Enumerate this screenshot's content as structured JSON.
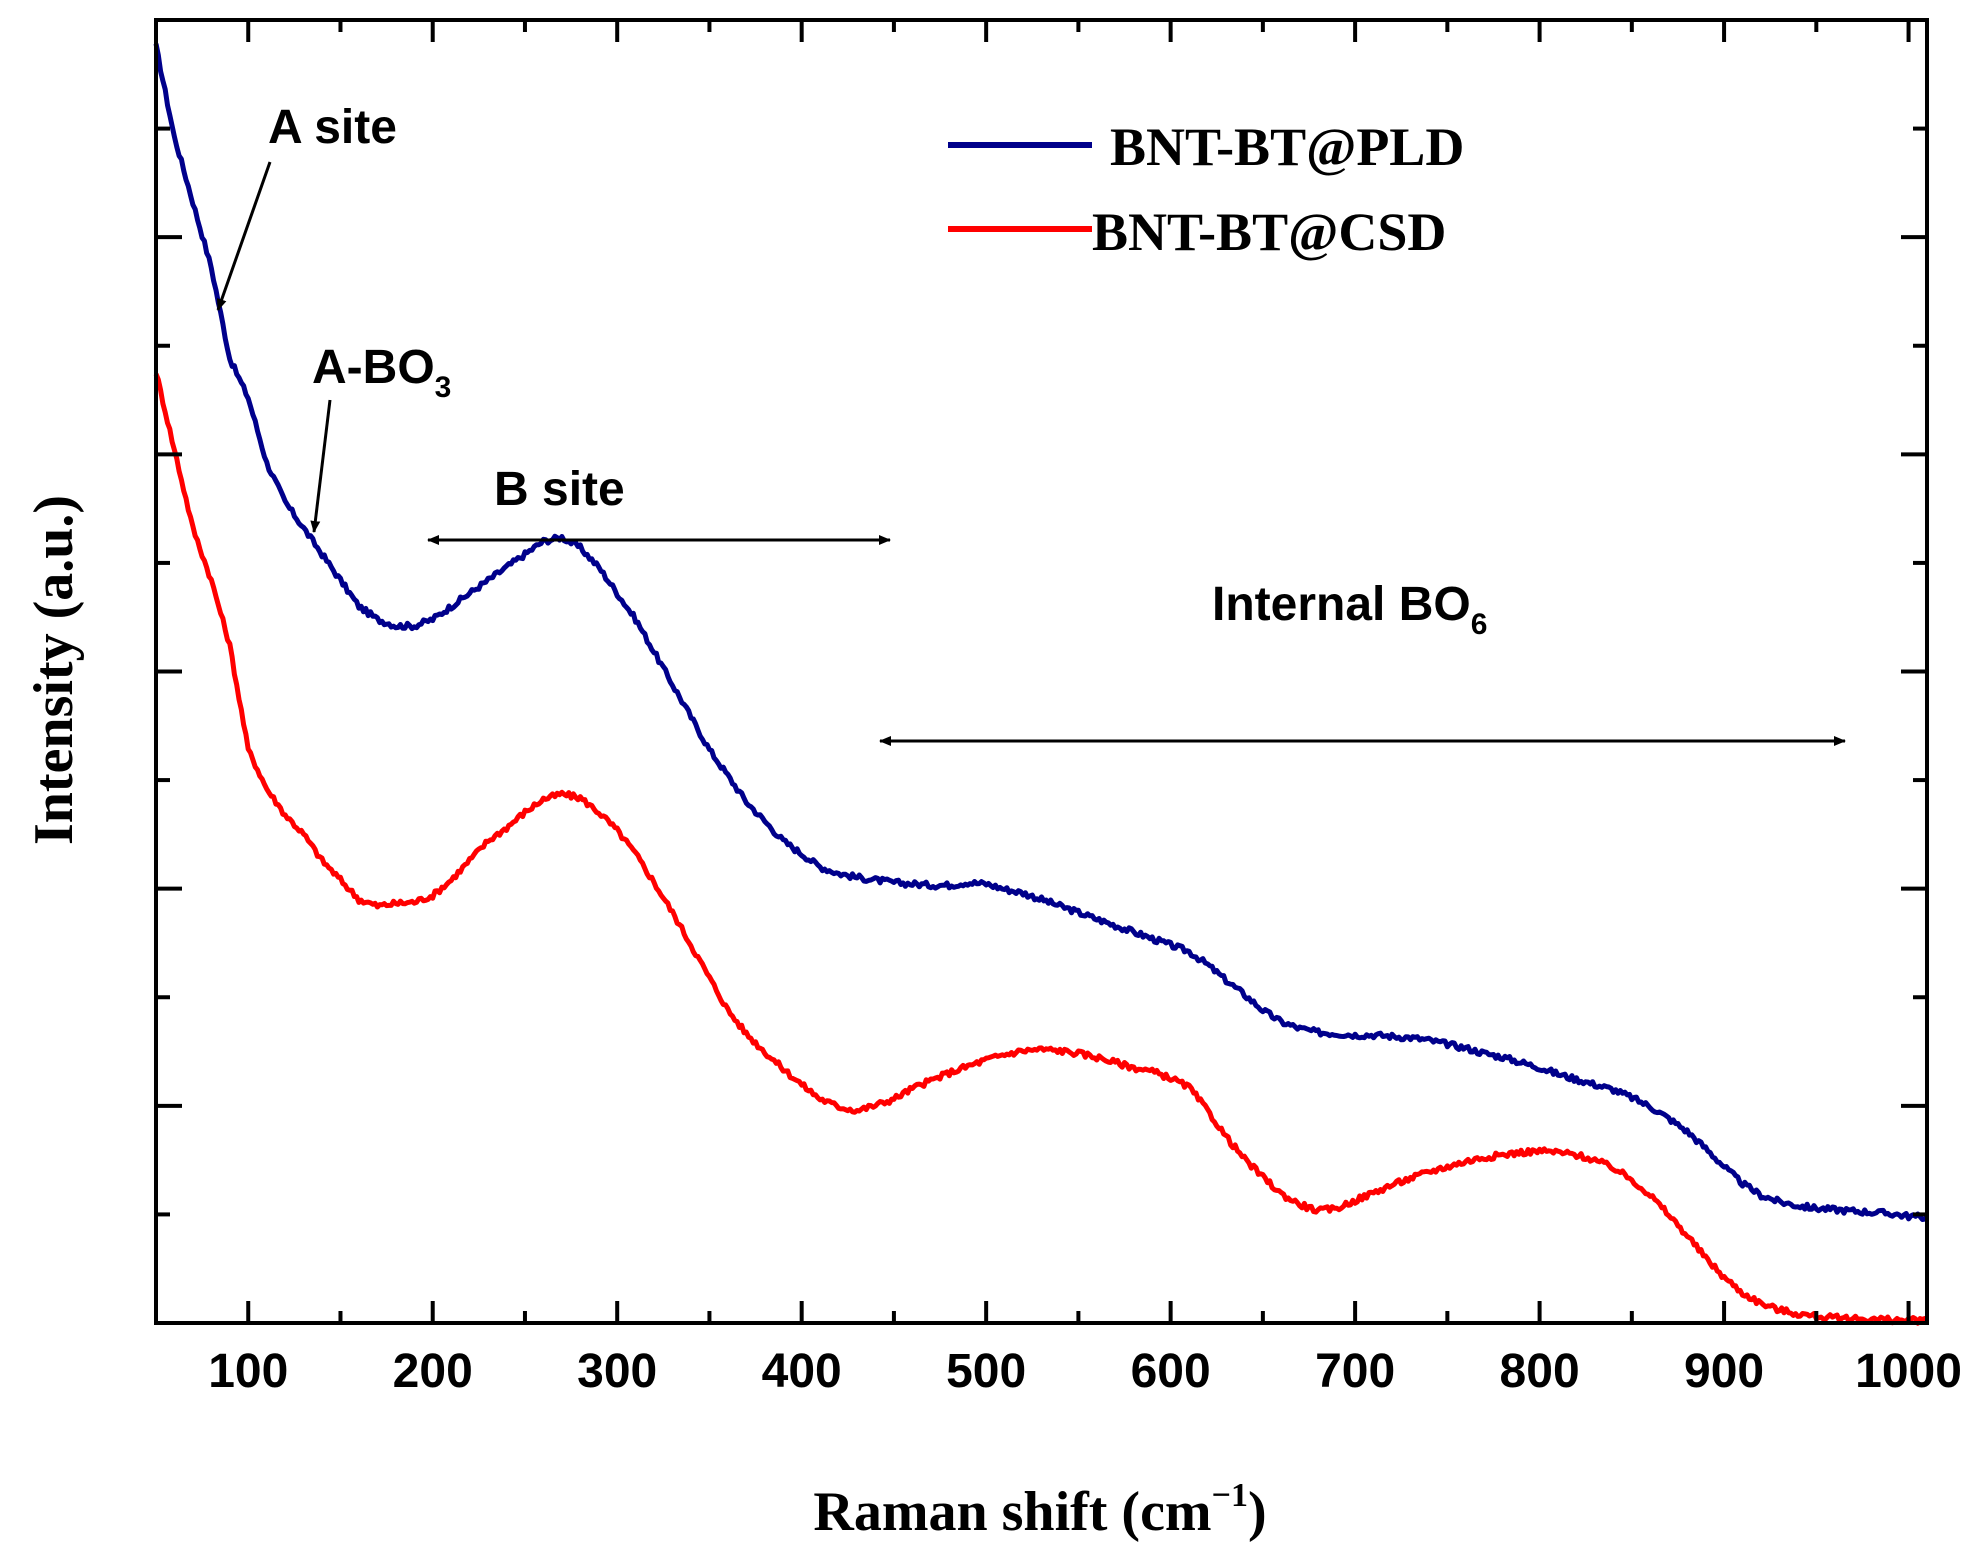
{
  "chart_data": {
    "type": "line",
    "title": "",
    "xlabel": "Raman shift (cm",
    "xlabel_sup": "−1",
    "xlabel_end": ")",
    "ylabel": "Intensity (a.u.)",
    "xlim": [
      50,
      1010
    ],
    "ylim": [
      0,
      100
    ],
    "x_ticks": [
      100,
      200,
      300,
      400,
      500,
      600,
      700,
      800,
      900,
      1000
    ],
    "y_tick_labels_shown": false,
    "colors": {
      "axis": "#000000",
      "pld": "#00008b",
      "csd": "#ff0000"
    },
    "series": [
      {
        "name": "BNT-BT@PLD",
        "color": "#00008b",
        "points": [
          [
            50,
            98
          ],
          [
            60,
            91
          ],
          [
            70,
            86
          ],
          [
            80,
            81
          ],
          [
            90,
            74
          ],
          [
            100,
            71
          ],
          [
            110,
            66
          ],
          [
            120,
            63
          ],
          [
            130,
            61
          ],
          [
            140,
            59
          ],
          [
            150,
            57
          ],
          [
            160,
            55
          ],
          [
            170,
            54
          ],
          [
            180,
            53.5
          ],
          [
            190,
            53.5
          ],
          [
            200,
            54
          ],
          [
            210,
            55
          ],
          [
            220,
            56
          ],
          [
            230,
            57
          ],
          [
            240,
            58
          ],
          [
            250,
            59
          ],
          [
            260,
            60
          ],
          [
            270,
            60.3
          ],
          [
            280,
            59.5
          ],
          [
            290,
            58
          ],
          [
            300,
            56
          ],
          [
            310,
            54
          ],
          [
            320,
            51.5
          ],
          [
            330,
            49
          ],
          [
            340,
            46.5
          ],
          [
            350,
            44
          ],
          [
            360,
            42
          ],
          [
            370,
            40
          ],
          [
            380,
            38.5
          ],
          [
            390,
            37
          ],
          [
            400,
            36
          ],
          [
            410,
            35
          ],
          [
            420,
            34.5
          ],
          [
            430,
            34.2
          ],
          [
            440,
            34
          ],
          [
            450,
            33.8
          ],
          [
            460,
            33.7
          ],
          [
            470,
            33.6
          ],
          [
            480,
            33.6
          ],
          [
            490,
            33.8
          ],
          [
            500,
            33.7
          ],
          [
            510,
            33.3
          ],
          [
            520,
            33
          ],
          [
            530,
            32.5
          ],
          [
            540,
            32
          ],
          [
            550,
            31.5
          ],
          [
            560,
            31
          ],
          [
            570,
            30.5
          ],
          [
            580,
            30
          ],
          [
            590,
            29.5
          ],
          [
            600,
            29
          ],
          [
            610,
            28.5
          ],
          [
            620,
            27.5
          ],
          [
            630,
            26.3
          ],
          [
            640,
            25.2
          ],
          [
            650,
            24
          ],
          [
            660,
            23.1
          ],
          [
            670,
            22.6
          ],
          [
            680,
            22.3
          ],
          [
            690,
            22.2
          ],
          [
            700,
            22.1
          ],
          [
            710,
            22.1
          ],
          [
            720,
            22
          ],
          [
            730,
            21.9
          ],
          [
            740,
            21.7
          ],
          [
            750,
            21.4
          ],
          [
            760,
            21.1
          ],
          [
            770,
            20.7
          ],
          [
            780,
            20.4
          ],
          [
            790,
            20
          ],
          [
            800,
            19.6
          ],
          [
            810,
            19.1
          ],
          [
            820,
            18.7
          ],
          [
            830,
            18.3
          ],
          [
            840,
            17.9
          ],
          [
            850,
            17.3
          ],
          [
            860,
            16.6
          ],
          [
            870,
            15.7
          ],
          [
            880,
            14.7
          ],
          [
            890,
            13.4
          ],
          [
            900,
            12
          ],
          [
            910,
            10.7
          ],
          [
            920,
            9.8
          ],
          [
            930,
            9.3
          ],
          [
            940,
            9
          ],
          [
            950,
            8.8
          ],
          [
            960,
            8.7
          ],
          [
            970,
            8.6
          ],
          [
            980,
            8.5
          ],
          [
            990,
            8.4
          ],
          [
            1000,
            8.2
          ],
          [
            1010,
            8.1
          ]
        ]
      },
      {
        "name": "BNT-BT@CSD",
        "color": "#ff0000",
        "points": [
          [
            50,
            73
          ],
          [
            60,
            67
          ],
          [
            70,
            61
          ],
          [
            80,
            57
          ],
          [
            90,
            52
          ],
          [
            100,
            44
          ],
          [
            110,
            41
          ],
          [
            120,
            39
          ],
          [
            130,
            37.5
          ],
          [
            140,
            35.5
          ],
          [
            150,
            34
          ],
          [
            160,
            32.5
          ],
          [
            170,
            32
          ],
          [
            180,
            32.2
          ],
          [
            190,
            32.3
          ],
          [
            200,
            32.8
          ],
          [
            210,
            34
          ],
          [
            220,
            35.5
          ],
          [
            230,
            37
          ],
          [
            240,
            38
          ],
          [
            250,
            39.2
          ],
          [
            260,
            40.2
          ],
          [
            270,
            40.6
          ],
          [
            280,
            40.3
          ],
          [
            290,
            39.2
          ],
          [
            300,
            37.8
          ],
          [
            310,
            36
          ],
          [
            320,
            33.8
          ],
          [
            330,
            31.5
          ],
          [
            340,
            29
          ],
          [
            350,
            26.5
          ],
          [
            360,
            24
          ],
          [
            370,
            22.2
          ],
          [
            380,
            20.8
          ],
          [
            390,
            19.5
          ],
          [
            400,
            18.3
          ],
          [
            410,
            17.2
          ],
          [
            420,
            16.6
          ],
          [
            430,
            16.3
          ],
          [
            440,
            16.7
          ],
          [
            450,
            17.2
          ],
          [
            460,
            18
          ],
          [
            470,
            18.6
          ],
          [
            480,
            19.2
          ],
          [
            490,
            19.7
          ],
          [
            500,
            20.2
          ],
          [
            510,
            20.6
          ],
          [
            520,
            20.9
          ],
          [
            530,
            21
          ],
          [
            540,
            20.9
          ],
          [
            550,
            20.7
          ],
          [
            560,
            20.4
          ],
          [
            570,
            20
          ],
          [
            580,
            19.6
          ],
          [
            590,
            19.3
          ],
          [
            600,
            18.8
          ],
          [
            610,
            18.1
          ],
          [
            620,
            16.3
          ],
          [
            630,
            14.3
          ],
          [
            640,
            12.6
          ],
          [
            650,
            11.2
          ],
          [
            660,
            9.9
          ],
          [
            670,
            9.1
          ],
          [
            680,
            8.6
          ],
          [
            690,
            8.8
          ],
          [
            700,
            9.4
          ],
          [
            710,
            10
          ],
          [
            720,
            10.6
          ],
          [
            730,
            11.1
          ],
          [
            740,
            11.6
          ],
          [
            750,
            12
          ],
          [
            760,
            12.4
          ],
          [
            770,
            12.7
          ],
          [
            780,
            12.9
          ],
          [
            790,
            13.1
          ],
          [
            800,
            13.2
          ],
          [
            810,
            13.1
          ],
          [
            820,
            12.9
          ],
          [
            830,
            12.5
          ],
          [
            840,
            11.9
          ],
          [
            850,
            11
          ],
          [
            860,
            9.8
          ],
          [
            870,
            8.3
          ],
          [
            880,
            6.7
          ],
          [
            890,
            5
          ],
          [
            900,
            3.5
          ],
          [
            910,
            2.3
          ],
          [
            920,
            1.5
          ],
          [
            930,
            1
          ],
          [
            940,
            0.7
          ],
          [
            950,
            0.5
          ],
          [
            960,
            0.4
          ],
          [
            970,
            0.35
          ],
          [
            980,
            0.3
          ],
          [
            990,
            0.25
          ],
          [
            1000,
            0.2
          ],
          [
            1010,
            0.2
          ]
        ]
      }
    ],
    "legend": {
      "position": "top-right",
      "entries": [
        "BNT-BT@PLD",
        "BNT-BT@CSD"
      ]
    },
    "annotations": {
      "a_site": "A site",
      "abo3": "A-BO",
      "abo3_sub": "3",
      "b_site": "B site",
      "internal": "Internal BO",
      "internal_sub": "6"
    }
  }
}
